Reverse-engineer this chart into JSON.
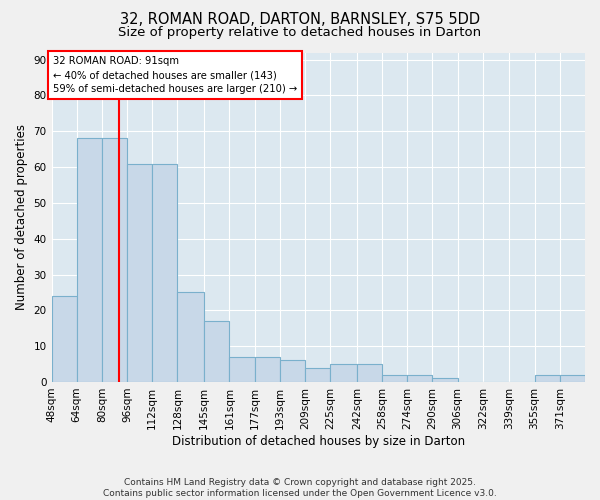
{
  "title1": "32, ROMAN ROAD, DARTON, BARNSLEY, S75 5DD",
  "title2": "Size of property relative to detached houses in Darton",
  "xlabel": "Distribution of detached houses by size in Darton",
  "ylabel": "Number of detached properties",
  "bin_edges": [
    48,
    64,
    80,
    96,
    112,
    128,
    145,
    161,
    177,
    193,
    209,
    225,
    242,
    258,
    274,
    290,
    306,
    322,
    339,
    355,
    371,
    387
  ],
  "bin_labels": [
    "48sqm",
    "64sqm",
    "80sqm",
    "96sqm",
    "112sqm",
    "128sqm",
    "145sqm",
    "161sqm",
    "177sqm",
    "193sqm",
    "209sqm",
    "225sqm",
    "242sqm",
    "258sqm",
    "274sqm",
    "290sqm",
    "306sqm",
    "322sqm",
    "339sqm",
    "355sqm",
    "371sqm"
  ],
  "counts": [
    24,
    68,
    68,
    61,
    61,
    25,
    17,
    7,
    7,
    6,
    4,
    5,
    5,
    2,
    2,
    1,
    0,
    0,
    0,
    2,
    2
  ],
  "bar_facecolor": "#c8d8e8",
  "bar_edgecolor": "#7ab0cc",
  "background_color": "#dce8f0",
  "grid_color": "#ffffff",
  "fig_background": "#f0f0f0",
  "red_line_x": 91,
  "annotation_line1": "32 ROMAN ROAD: 91sqm",
  "annotation_line2": "← 40% of detached houses are smaller (143)",
  "annotation_line3": "59% of semi-detached houses are larger (210) →",
  "ylim": [
    0,
    92
  ],
  "yticks": [
    0,
    10,
    20,
    30,
    40,
    50,
    60,
    70,
    80,
    90
  ],
  "footer_text": "Contains HM Land Registry data © Crown copyright and database right 2025.\nContains public sector information licensed under the Open Government Licence v3.0.",
  "title_fontsize": 10.5,
  "subtitle_fontsize": 9.5,
  "axis_label_fontsize": 8.5,
  "tick_fontsize": 7.5,
  "footer_fontsize": 6.5
}
